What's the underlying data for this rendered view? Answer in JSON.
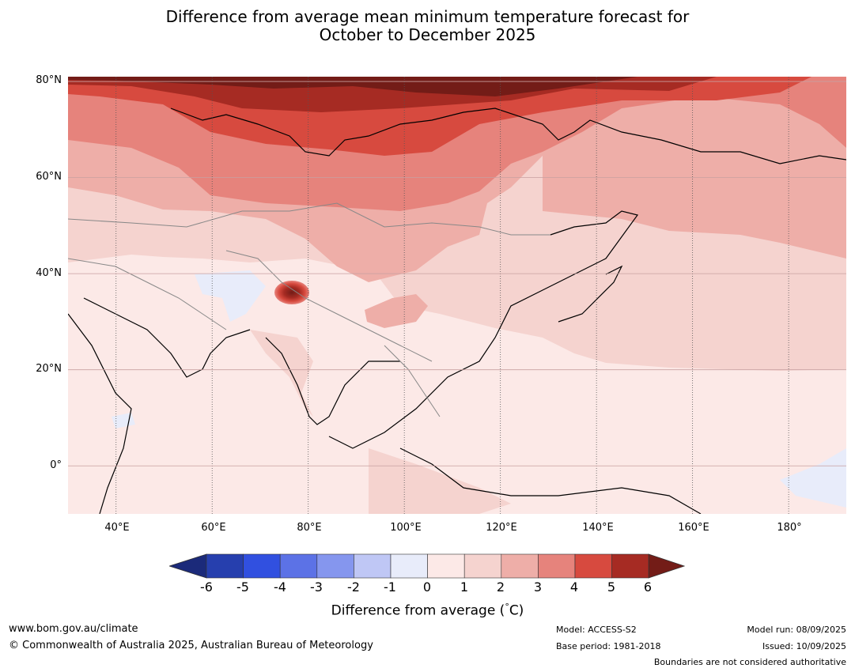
{
  "title": {
    "line1": "Difference from average mean minimum temperature forecast for",
    "line2": "October to December 2025"
  },
  "map": {
    "region": "Asia",
    "lon_range": [
      30,
      192
    ],
    "lat_range": [
      -10,
      81
    ],
    "lat_labels": [
      "80°N",
      "60°N",
      "40°N",
      "20°N",
      "0°"
    ],
    "lon_labels": [
      "40°E",
      "60°E",
      "80°E",
      "100°E",
      "120°E",
      "140°E",
      "160°E",
      "180°"
    ],
    "colors": {
      "lt-1": "#e8ecfa",
      "0-1": "#fce9e7",
      "1-2": "#f5d3cf",
      "2-3": "#eeaea8",
      "3-4": "#e6837c",
      "4-5": "#d74a3f",
      "5-6": "#a62b23",
      "gt6": "#731c17",
      "coast": "#000000",
      "borders": "#888888",
      "grid": "#c8a0a0"
    }
  },
  "colorbar": {
    "ticks": [
      "-6",
      "-5",
      "-4",
      "-3",
      "-2",
      "-1",
      "0",
      "1",
      "2",
      "3",
      "4",
      "5",
      "6"
    ],
    "colors": [
      "#1b2a7a",
      "#263fae",
      "#3150e0",
      "#5c72e6",
      "#8596ee",
      "#bfc7f5",
      "#e8ecfa",
      "#fce9e7",
      "#f5d3cf",
      "#eeaea8",
      "#e6837c",
      "#d74a3f",
      "#a62b23",
      "#731c17"
    ],
    "label": "Difference from average (",
    "label_degree": "°",
    "label_unit": "C)"
  },
  "footer": {
    "website": "www.bom.gov.au/climate",
    "copyright": "© Commonwealth of Australia 2025, Australian Bureau of Meteorology",
    "model": "Model: ACCESS-S2",
    "base_period": "Base period: 1981-2018",
    "model_run": "Model run: 08/09/2025",
    "issued": "Issued: 10/09/2025",
    "disclaimer": "Boundaries are not considered authoritative"
  }
}
